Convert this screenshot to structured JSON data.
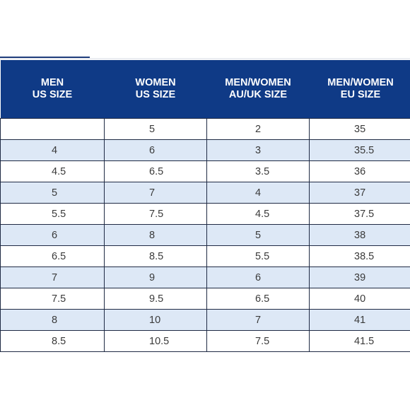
{
  "headers": [
    [
      "MEN",
      "US SIZE"
    ],
    [
      "WOMEN",
      "US SIZE"
    ],
    [
      "MEN/WOMEN",
      "AU/UK SIZE"
    ],
    [
      "MEN/WOMEN",
      "EU SIZE"
    ]
  ],
  "rows": [
    [
      "",
      "5",
      "2",
      "35"
    ],
    [
      "4",
      "6",
      "3",
      "35.5"
    ],
    [
      "4.5",
      "6.5",
      "3.5",
      "36"
    ],
    [
      "5",
      "7",
      "4",
      "37"
    ],
    [
      "5.5",
      "7.5",
      "4.5",
      "37.5"
    ],
    [
      "6",
      "8",
      "5",
      "38"
    ],
    [
      "6.5",
      "8.5",
      "5.5",
      "38.5"
    ],
    [
      "7",
      "9",
      "6",
      "39"
    ],
    [
      "7.5",
      "9.5",
      "6.5",
      "40"
    ],
    [
      "8",
      "10",
      "7",
      "41"
    ],
    [
      "8.5",
      "10.5",
      "7.5",
      "41.5"
    ]
  ],
  "colors": {
    "header_bg": "#0f3a86",
    "header_text": "#ffffff",
    "alt_row_bg": "#dde8f6",
    "border": "#1f2a44"
  }
}
